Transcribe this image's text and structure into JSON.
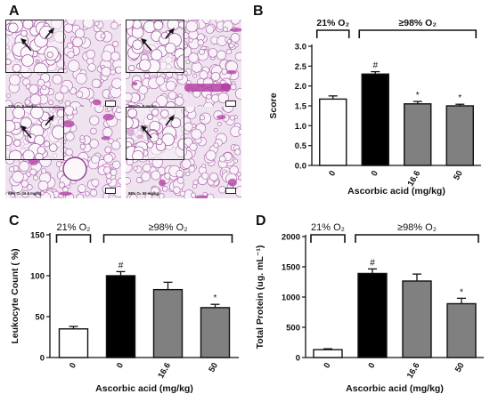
{
  "panels": {
    "A": {
      "letter": "A",
      "images": [
        {
          "caption": "21% O₂ 0 mg/kg"
        },
        {
          "caption": "98% O₂ 0 mg/kg"
        },
        {
          "caption": "98% O₂ 16.6 mg/kg"
        },
        {
          "caption": "98% O₂ 50 mg/kg"
        }
      ]
    }
  },
  "colors": {
    "control": "#ffffff",
    "hyperoxia": "#000000",
    "treated": "#808080",
    "axis": "#111111",
    "tissue": "#b23aa0"
  },
  "chart_data": [
    {
      "panel": "B",
      "type": "bar",
      "ylabel": "Score",
      "xlabel": "Ascorbic acid  (mg/kg)",
      "ylim": [
        0,
        3.0
      ],
      "yticks": [
        "0.0",
        "0.5",
        "1.0",
        "1.5",
        "2.0",
        "2.5",
        "3.0"
      ],
      "tick_step": 0.5,
      "categories": [
        "0",
        "0",
        "16.6",
        "50"
      ],
      "values": [
        1.67,
        2.3,
        1.55,
        1.5
      ],
      "errors": [
        0.08,
        0.06,
        0.06,
        0.04
      ],
      "marks": [
        "",
        "#",
        "*",
        "*"
      ],
      "groups": [
        {
          "label": "21% O₂",
          "from": 0,
          "to": 0
        },
        {
          "label": "≥98% O₂",
          "from": 1,
          "to": 3
        }
      ]
    },
    {
      "panel": "C",
      "type": "bar",
      "ylabel": "Leukocyte Count ( %)",
      "xlabel": "Ascorbic acid (mg/kg)",
      "ylim": [
        0,
        150
      ],
      "yticks": [
        "0",
        "50",
        "100",
        "150"
      ],
      "tick_step": 50,
      "categories": [
        "0",
        "0",
        "16.6",
        "50"
      ],
      "values": [
        35,
        100,
        83,
        61
      ],
      "errors": [
        3,
        5,
        9,
        4
      ],
      "marks": [
        "",
        "#",
        "",
        "*"
      ],
      "groups": [
        {
          "label": "21% O₂",
          "from": 0,
          "to": 0
        },
        {
          "label": "≥98% O₂",
          "from": 1,
          "to": 3
        }
      ]
    },
    {
      "panel": "D",
      "type": "bar",
      "ylabel": "Total Protein (ug. mL⁻¹)",
      "xlabel": "Ascorbic acid (mg/kg)",
      "ylim": [
        0,
        2000
      ],
      "yticks": [
        "0",
        "500",
        "1000",
        "1500",
        "2000"
      ],
      "tick_step": 500,
      "categories": [
        "0",
        "0",
        "16.6",
        "50"
      ],
      "values": [
        130,
        1390,
        1265,
        890
      ],
      "errors": [
        15,
        75,
        115,
        90
      ],
      "marks": [
        "",
        "#",
        "",
        "*"
      ],
      "groups": [
        {
          "label": "21% O₂",
          "from": 0,
          "to": 0
        },
        {
          "label": "≥98% O₂",
          "from": 1,
          "to": 3
        }
      ]
    }
  ]
}
